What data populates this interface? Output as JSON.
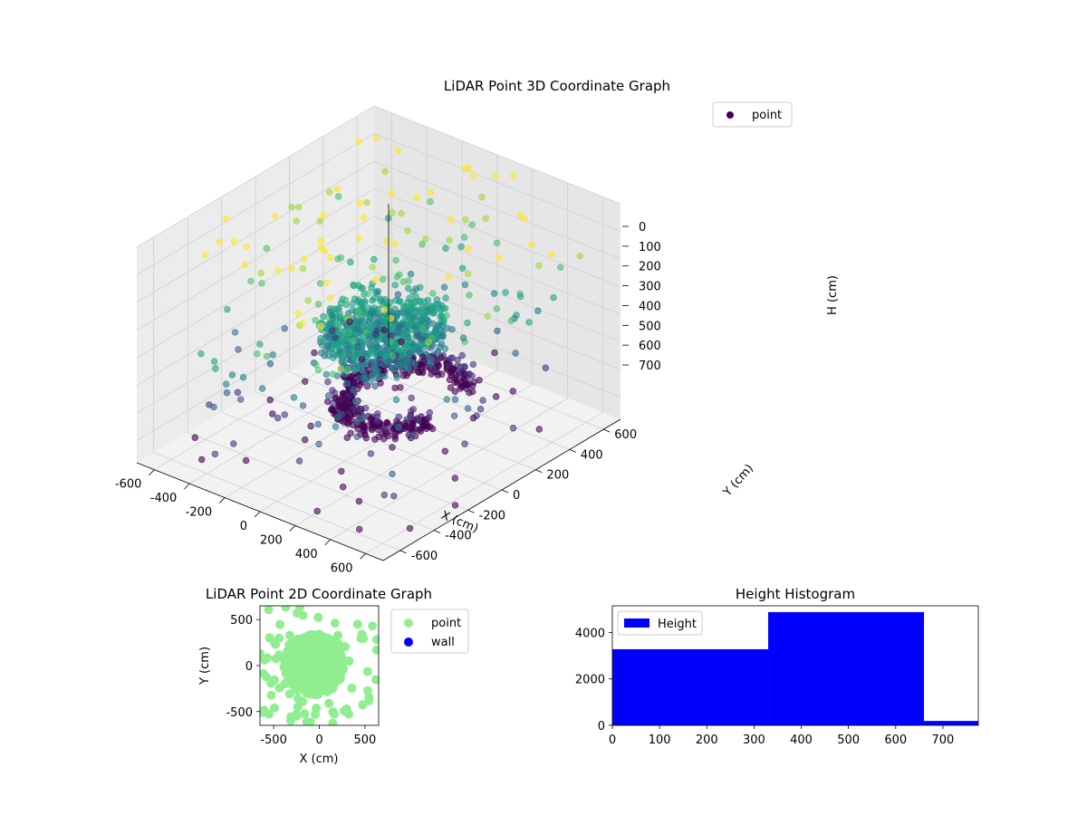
{
  "colors": {
    "point_3d": "#440154",
    "point_2d": "#90ee90",
    "wall": "#0000ff",
    "histogram": "#0000ff",
    "pane": "#f2f2f2",
    "grid": "#cfcfcf"
  },
  "chart_data": [
    {
      "type": "scatter",
      "title": "LiDAR Point 3D Coordinate Graph",
      "xlabel": "X (cm)",
      "ylabel": "Y (cm)",
      "zlabel": "H (cm)",
      "x_ticks": [
        "-600",
        "-400",
        "-200",
        "0",
        "200",
        "400",
        "600"
      ],
      "y_ticks": [
        "-600",
        "-400",
        "-200",
        "0",
        "200",
        "400",
        "600"
      ],
      "z_ticks": [
        "0",
        "100",
        "200",
        "300",
        "400",
        "500",
        "600",
        "700"
      ],
      "xlim": [
        -700,
        700
      ],
      "ylim": [
        -700,
        700
      ],
      "zlim": [
        0,
        780
      ],
      "z_inverted": true,
      "colormap": "viridis",
      "grid": true,
      "legend": {
        "placement": "upper right",
        "entries": [
          {
            "label": "point"
          }
        ]
      },
      "series": [
        {
          "name": "point",
          "clusters": [
            {
              "shape": "ring",
              "cx": -50,
              "cy": 200,
              "r": 260,
              "h": 700,
              "n": 420,
              "color_by": "h"
            },
            {
              "shape": "disc",
              "cx": 20,
              "cy": 0,
              "r": 260,
              "h": 380,
              "n": 700,
              "color_by": "h"
            },
            {
              "shape": "scatter",
              "n": 260,
              "range": 650,
              "h_range": [
                0,
                780
              ]
            }
          ]
        }
      ]
    },
    {
      "type": "scatter",
      "title": "LiDAR Point 2D Coordinate Graph",
      "xlabel": "X (cm)",
      "ylabel": "Y (cm)",
      "x_ticks": [
        "-500",
        "0",
        "500"
      ],
      "y_ticks": [
        "-500",
        "0",
        "500"
      ],
      "xlim": [
        -650,
        650
      ],
      "ylim": [
        -650,
        650
      ],
      "legend": {
        "placement": "outside right",
        "entries": [
          {
            "label": "point"
          },
          {
            "label": "wall"
          }
        ]
      },
      "series": [
        {
          "name": "point",
          "cluster": {
            "cx": -60,
            "cy": 10,
            "r": 330,
            "n": 380,
            "outliers": 90
          }
        },
        {
          "name": "wall",
          "values": []
        }
      ]
    },
    {
      "type": "bar",
      "title": "Height Histogram",
      "xlabel": "",
      "ylabel": "",
      "x_ticks": [
        "0",
        "100",
        "200",
        "300",
        "400",
        "500",
        "600",
        "700"
      ],
      "y_ticks": [
        "0",
        "2000",
        "4000"
      ],
      "xlim": [
        0,
        775
      ],
      "ylim": [
        0,
        5150
      ],
      "bins": [
        {
          "start": 0,
          "end": 330,
          "count": 3280
        },
        {
          "start": 330,
          "end": 660,
          "count": 4880
        },
        {
          "start": 660,
          "end": 775,
          "count": 190
        }
      ],
      "legend": {
        "placement": "upper left",
        "entries": [
          {
            "label": "Height"
          }
        ]
      },
      "series": [
        {
          "name": "Height"
        }
      ]
    }
  ]
}
